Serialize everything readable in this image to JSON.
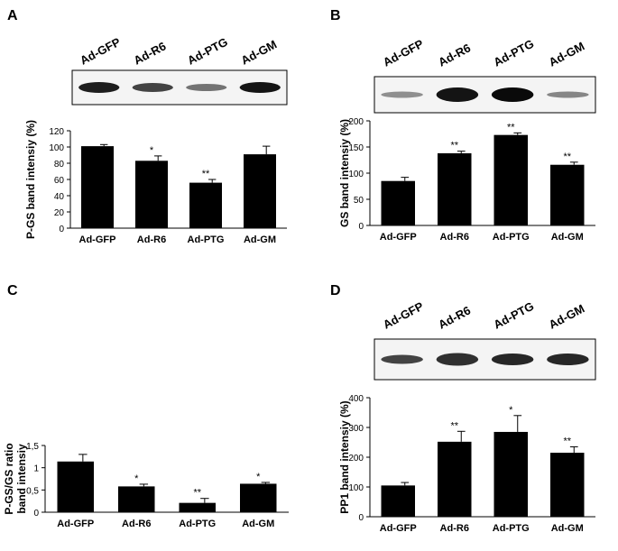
{
  "chart_data": [
    {
      "type": "bar",
      "title": "A",
      "ylabel": "P-GS band intensiy (%)",
      "categories": [
        "Ad-GFP",
        "Ad-R6",
        "Ad-PTG",
        "Ad-GM"
      ],
      "values": [
        101,
        83,
        56,
        91
      ],
      "errors": [
        2,
        6,
        4,
        10
      ],
      "annotations": [
        null,
        "*",
        "**",
        null
      ],
      "color": "#000000",
      "ylim": [
        0,
        120
      ],
      "yticks": [
        0,
        20,
        40,
        60,
        80,
        100,
        120
      ]
    },
    {
      "type": "bar",
      "title": "B",
      "ylabel": "GS band intensiy (%)",
      "categories": [
        "Ad-GFP",
        "Ad-R6",
        "Ad-PTG",
        "Ad-GM"
      ],
      "values": [
        85,
        138,
        173,
        116
      ],
      "errors": [
        7,
        4,
        4,
        5
      ],
      "annotations": [
        null,
        "**",
        "**",
        "**"
      ],
      "color": "#000000",
      "ylim": [
        0,
        200
      ],
      "yticks": [
        0,
        50,
        100,
        150,
        200
      ]
    },
    {
      "type": "bar",
      "title": "C",
      "ylabel": [
        "P-GS/GS ratio",
        "band intensiy"
      ],
      "categories": [
        "Ad-GFP",
        "Ad-R6",
        "Ad-PTG",
        "Ad-GM"
      ],
      "values": [
        1.14,
        0.58,
        0.21,
        0.64
      ],
      "errors": [
        0.16,
        0.05,
        0.1,
        0.03
      ],
      "annotations": [
        null,
        "*",
        "**",
        "*"
      ],
      "color": "#000000",
      "ylim": [
        0,
        1.5
      ],
      "yticks": [
        0,
        {
          "value": 0.5,
          "label": "0,5"
        },
        1,
        {
          "value": 1.5,
          "label": "1,5"
        }
      ]
    },
    {
      "type": "bar",
      "title": "D",
      "ylabel": "PP1 band intensiy (%)",
      "categories": [
        "Ad-GFP",
        "Ad-R6",
        "Ad-PTG",
        "Ad-GM"
      ],
      "values": [
        105,
        252,
        285,
        215
      ],
      "errors": [
        10,
        35,
        55,
        20
      ],
      "annotations": [
        null,
        "**",
        "*",
        "**"
      ],
      "color": "#000000",
      "ylim": [
        0,
        400
      ],
      "yticks": [
        0,
        100,
        200,
        300,
        400
      ]
    }
  ]
}
